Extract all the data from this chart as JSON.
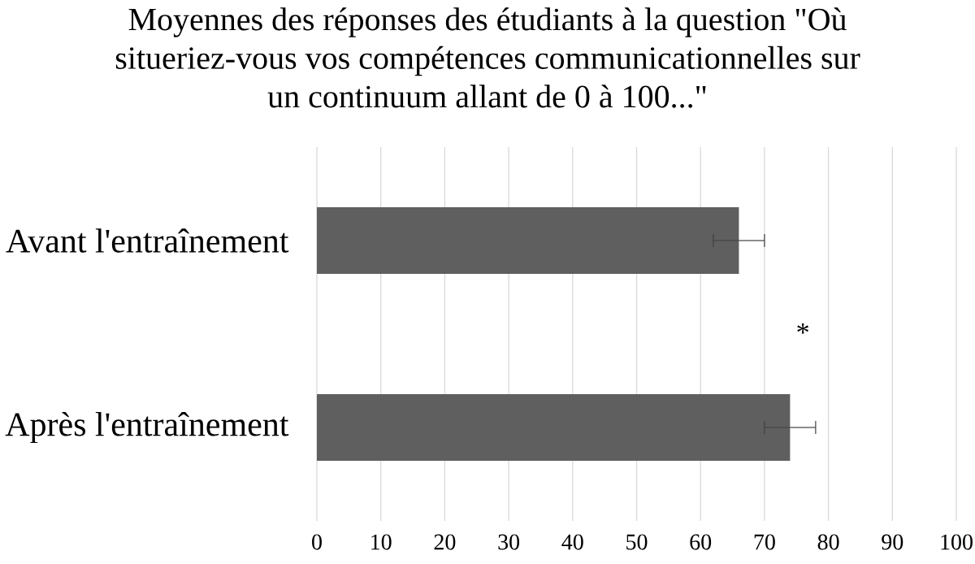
{
  "chart_data": {
    "type": "bar",
    "orientation": "horizontal",
    "title": "Moyennes des réponses des étudiants à la question \"Où situeriez-vous vos compétences communicationnelles sur un continuum allant de 0 à 100...\"",
    "categories": [
      "Avant l'entraînement",
      "Après l'entraînement"
    ],
    "values": [
      66,
      74
    ],
    "errors": [
      4,
      4
    ],
    "color": "#5f5f5f",
    "xlim": [
      0,
      100
    ],
    "xticks": [
      0,
      10,
      20,
      30,
      40,
      50,
      60,
      70,
      80,
      90,
      100
    ],
    "grid": "x",
    "annotations": [
      "*"
    ]
  }
}
